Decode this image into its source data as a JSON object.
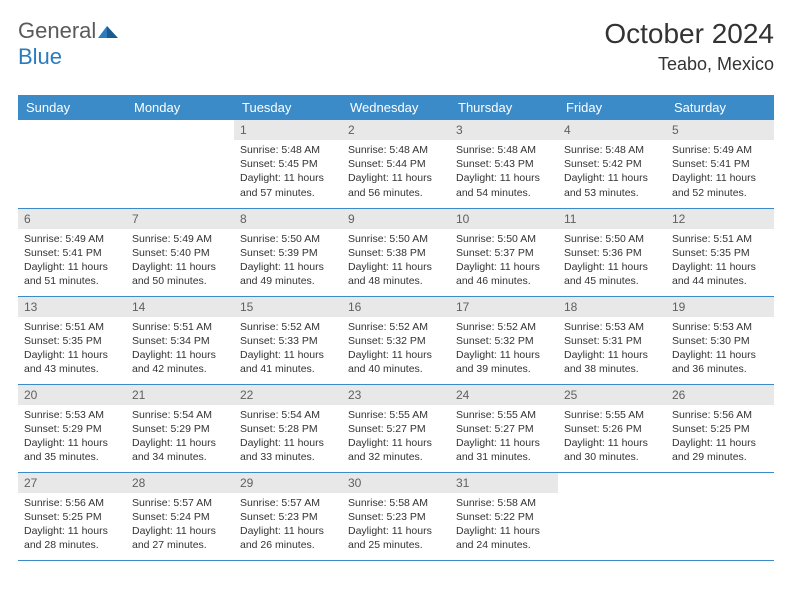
{
  "logo": {
    "text_general": "General",
    "text_blue": "Blue"
  },
  "title": "October 2024",
  "location": "Teabo, Mexico",
  "colors": {
    "header_bg": "#3b8bc9",
    "header_fg": "#ffffff",
    "daynum_bg": "#e8e8e8",
    "daynum_fg": "#606060",
    "border": "#3b8bc9",
    "page_bg": "#ffffff",
    "text": "#333333",
    "logo_gray": "#5a5a5a",
    "logo_blue": "#2b7bbf"
  },
  "weekdays": [
    "Sunday",
    "Monday",
    "Tuesday",
    "Wednesday",
    "Thursday",
    "Friday",
    "Saturday"
  ],
  "weeks": [
    [
      null,
      null,
      {
        "n": "1",
        "sr": "5:48 AM",
        "ss": "5:45 PM",
        "dl": "11 hours and 57 minutes."
      },
      {
        "n": "2",
        "sr": "5:48 AM",
        "ss": "5:44 PM",
        "dl": "11 hours and 56 minutes."
      },
      {
        "n": "3",
        "sr": "5:48 AM",
        "ss": "5:43 PM",
        "dl": "11 hours and 54 minutes."
      },
      {
        "n": "4",
        "sr": "5:48 AM",
        "ss": "5:42 PM",
        "dl": "11 hours and 53 minutes."
      },
      {
        "n": "5",
        "sr": "5:49 AM",
        "ss": "5:41 PM",
        "dl": "11 hours and 52 minutes."
      }
    ],
    [
      {
        "n": "6",
        "sr": "5:49 AM",
        "ss": "5:41 PM",
        "dl": "11 hours and 51 minutes."
      },
      {
        "n": "7",
        "sr": "5:49 AM",
        "ss": "5:40 PM",
        "dl": "11 hours and 50 minutes."
      },
      {
        "n": "8",
        "sr": "5:50 AM",
        "ss": "5:39 PM",
        "dl": "11 hours and 49 minutes."
      },
      {
        "n": "9",
        "sr": "5:50 AM",
        "ss": "5:38 PM",
        "dl": "11 hours and 48 minutes."
      },
      {
        "n": "10",
        "sr": "5:50 AM",
        "ss": "5:37 PM",
        "dl": "11 hours and 46 minutes."
      },
      {
        "n": "11",
        "sr": "5:50 AM",
        "ss": "5:36 PM",
        "dl": "11 hours and 45 minutes."
      },
      {
        "n": "12",
        "sr": "5:51 AM",
        "ss": "5:35 PM",
        "dl": "11 hours and 44 minutes."
      }
    ],
    [
      {
        "n": "13",
        "sr": "5:51 AM",
        "ss": "5:35 PM",
        "dl": "11 hours and 43 minutes."
      },
      {
        "n": "14",
        "sr": "5:51 AM",
        "ss": "5:34 PM",
        "dl": "11 hours and 42 minutes."
      },
      {
        "n": "15",
        "sr": "5:52 AM",
        "ss": "5:33 PM",
        "dl": "11 hours and 41 minutes."
      },
      {
        "n": "16",
        "sr": "5:52 AM",
        "ss": "5:32 PM",
        "dl": "11 hours and 40 minutes."
      },
      {
        "n": "17",
        "sr": "5:52 AM",
        "ss": "5:32 PM",
        "dl": "11 hours and 39 minutes."
      },
      {
        "n": "18",
        "sr": "5:53 AM",
        "ss": "5:31 PM",
        "dl": "11 hours and 38 minutes."
      },
      {
        "n": "19",
        "sr": "5:53 AM",
        "ss": "5:30 PM",
        "dl": "11 hours and 36 minutes."
      }
    ],
    [
      {
        "n": "20",
        "sr": "5:53 AM",
        "ss": "5:29 PM",
        "dl": "11 hours and 35 minutes."
      },
      {
        "n": "21",
        "sr": "5:54 AM",
        "ss": "5:29 PM",
        "dl": "11 hours and 34 minutes."
      },
      {
        "n": "22",
        "sr": "5:54 AM",
        "ss": "5:28 PM",
        "dl": "11 hours and 33 minutes."
      },
      {
        "n": "23",
        "sr": "5:55 AM",
        "ss": "5:27 PM",
        "dl": "11 hours and 32 minutes."
      },
      {
        "n": "24",
        "sr": "5:55 AM",
        "ss": "5:27 PM",
        "dl": "11 hours and 31 minutes."
      },
      {
        "n": "25",
        "sr": "5:55 AM",
        "ss": "5:26 PM",
        "dl": "11 hours and 30 minutes."
      },
      {
        "n": "26",
        "sr": "5:56 AM",
        "ss": "5:25 PM",
        "dl": "11 hours and 29 minutes."
      }
    ],
    [
      {
        "n": "27",
        "sr": "5:56 AM",
        "ss": "5:25 PM",
        "dl": "11 hours and 28 minutes."
      },
      {
        "n": "28",
        "sr": "5:57 AM",
        "ss": "5:24 PM",
        "dl": "11 hours and 27 minutes."
      },
      {
        "n": "29",
        "sr": "5:57 AM",
        "ss": "5:23 PM",
        "dl": "11 hours and 26 minutes."
      },
      {
        "n": "30",
        "sr": "5:58 AM",
        "ss": "5:23 PM",
        "dl": "11 hours and 25 minutes."
      },
      {
        "n": "31",
        "sr": "5:58 AM",
        "ss": "5:22 PM",
        "dl": "11 hours and 24 minutes."
      },
      null,
      null
    ]
  ],
  "labels": {
    "sunrise": "Sunrise: ",
    "sunset": "Sunset: ",
    "daylight": "Daylight: "
  }
}
